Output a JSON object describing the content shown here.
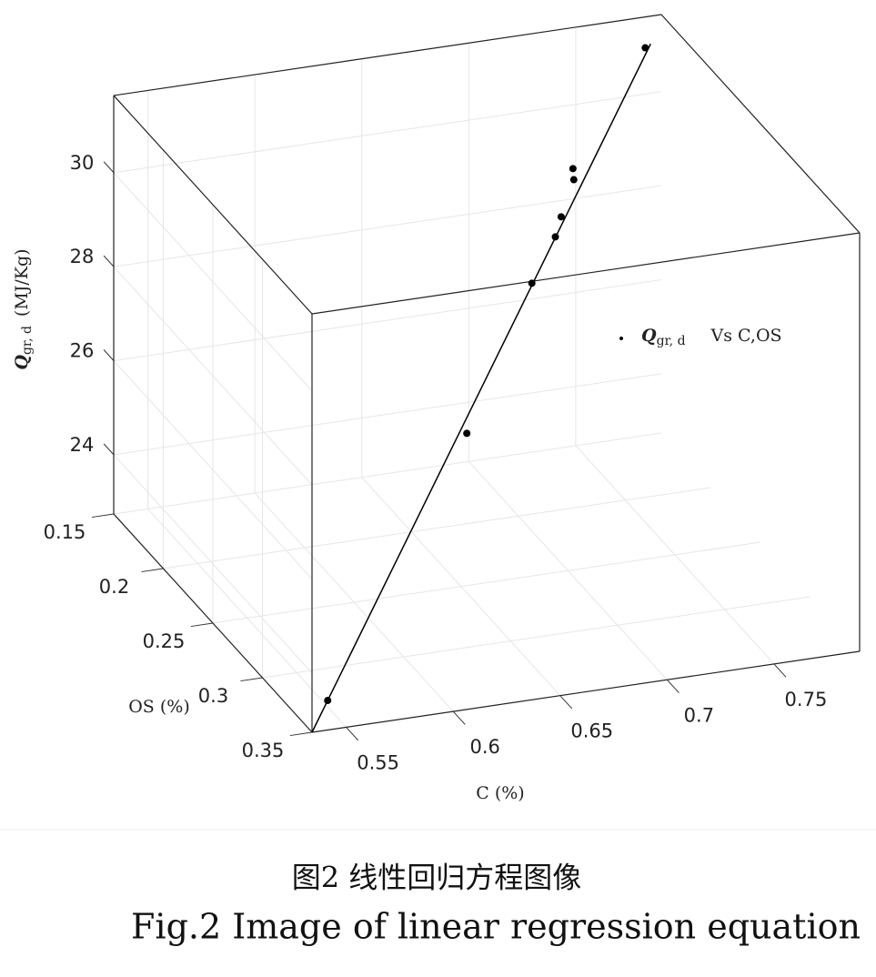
{
  "chart_data": {
    "type": "scatter3d",
    "xlabel": "C (%)",
    "ylabel": "OS (%)",
    "zlabel": {
      "symbol": "Q",
      "subscript": "gr, d",
      "text": "(MJ/Kg)"
    },
    "xlim": [
      0.534,
      0.79
    ],
    "ylim": [
      0.15,
      0.35
    ],
    "zlim": [
      22.74,
      31.64
    ],
    "xticks": [
      0.55,
      0.6,
      0.65,
      0.7,
      0.75
    ],
    "yticks": [
      0.15,
      0.2,
      0.25,
      0.3,
      0.35
    ],
    "zticks": [
      24,
      26,
      28,
      30
    ],
    "grid": true,
    "series": [
      {
        "name": {
          "symbol": "Q",
          "subscript": "gr, d",
          "text": "Vs C,OS"
        },
        "color": "#000000",
        "x": [
          0.5455,
          0.6467,
          0.6975,
          0.7145,
          0.72,
          0.731,
          0.732,
          0.782
        ],
        "y": [
          0.341,
          0.263,
          0.219,
          0.206,
          0.2,
          0.189,
          0.186,
          0.151
        ],
        "z": [
          23.13,
          26.32,
          28.15,
          28.72,
          28.97,
          29.43,
          29.59,
          31.01
        ]
      }
    ],
    "fit": {
      "x": [
        0.534,
        0.785
      ],
      "y": [
        0.35,
        0.15
      ],
      "z": [
        22.74,
        31.05
      ],
      "color": "#000000"
    },
    "legend": "upper right",
    "caption_cn": "图2  线性回归方程图像",
    "caption_en": "Fig.2  Image of linear regression equation"
  }
}
